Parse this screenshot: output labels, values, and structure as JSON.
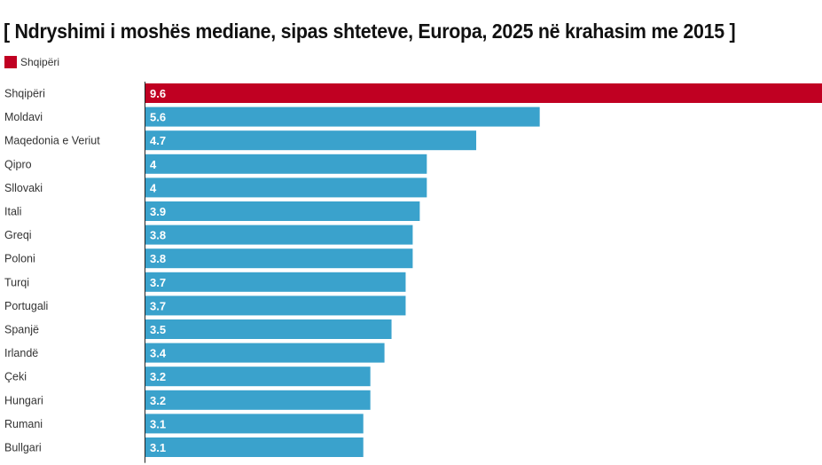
{
  "chart_data": {
    "type": "bar",
    "orientation": "horizontal",
    "title": "[ Ndryshimi i moshës mediane, sipas shteteve, Europa, 2025 në krahasim me 2015 ]",
    "xlabel": "",
    "ylabel": "",
    "xlim": [
      0,
      9.6
    ],
    "grid": false,
    "legend": {
      "position": "top-left",
      "entries": [
        {
          "label": "Shqipëri",
          "color": "#c00022"
        }
      ]
    },
    "categories": [
      "Shqipëri",
      "Moldavi",
      "Maqedonia e Veriut",
      "Qipro",
      "Sllovaki",
      "Itali",
      "Greqi",
      "Poloni",
      "Turqi",
      "Portugali",
      "Spanjë",
      "Irlandë",
      "Çeki",
      "Hungari",
      "Rumani",
      "Bullgari"
    ],
    "values": [
      9.6,
      5.6,
      4.7,
      4,
      4,
      3.9,
      3.8,
      3.8,
      3.7,
      3.7,
      3.5,
      3.4,
      3.2,
      3.2,
      3.1,
      3.1
    ],
    "value_labels": [
      "9.6",
      "5.6",
      "4.7",
      "4",
      "4",
      "3.9",
      "3.8",
      "3.8",
      "3.7",
      "3.7",
      "3.5",
      "3.4",
      "3.2",
      "3.2",
      "3.1",
      "3.1"
    ],
    "highlight_category": "Shqipëri",
    "colors": {
      "highlight": "#c00022",
      "default": "#3aa2cc",
      "axis": "#222222"
    }
  }
}
